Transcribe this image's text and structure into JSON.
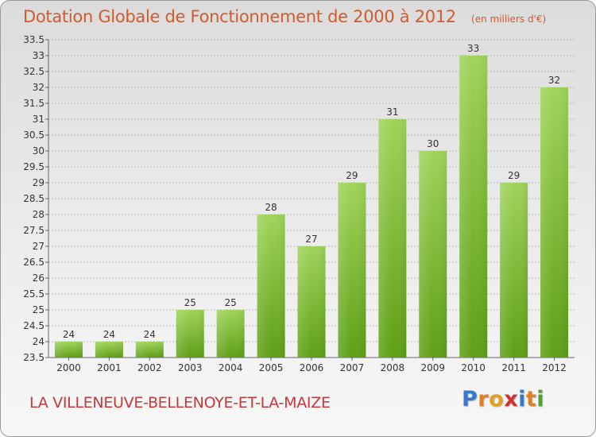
{
  "header": {
    "title": "Dotation Globale de Fonctionnement de 2000 à 2012",
    "unit": "(en milliers d'€)"
  },
  "footer": {
    "commune": "LA VILLENEUVE-BELLENOYE-ET-LA-MAIZE",
    "logo_letters": [
      "P",
      "r",
      "o",
      "x",
      "i",
      "t",
      "i"
    ]
  },
  "colors": {
    "title": "#d45a2c",
    "commune": "#c33a39",
    "bar_top": "#9fd45a",
    "bar_bottom": "#5e9f16",
    "grid": "#b8b8b8",
    "logo": [
      "#3a78c8",
      "#e08020",
      "#e0a020",
      "#d03030",
      "#3a78c8",
      "#e08020",
      "#50a030"
    ]
  },
  "chart_data": {
    "type": "bar",
    "title": "Dotation Globale de Fonctionnement de 2000 à 2012",
    "subtitle": "(en milliers d'€)",
    "categories": [
      "2000",
      "2001",
      "2002",
      "2003",
      "2004",
      "2005",
      "2006",
      "2007",
      "2008",
      "2009",
      "2010",
      "2011",
      "2012"
    ],
    "values": [
      24,
      24,
      24,
      25,
      25,
      28,
      27,
      29,
      31,
      30,
      33,
      29,
      32
    ],
    "ylim": [
      23.5,
      33.5
    ],
    "yticks": [
      23.5,
      24,
      24.5,
      25,
      25.5,
      26,
      26.5,
      27,
      27.5,
      28,
      28.5,
      29,
      29.5,
      30,
      30.5,
      31,
      31.5,
      32,
      32.5,
      33,
      33.5
    ],
    "grid": true,
    "legend": "none"
  }
}
